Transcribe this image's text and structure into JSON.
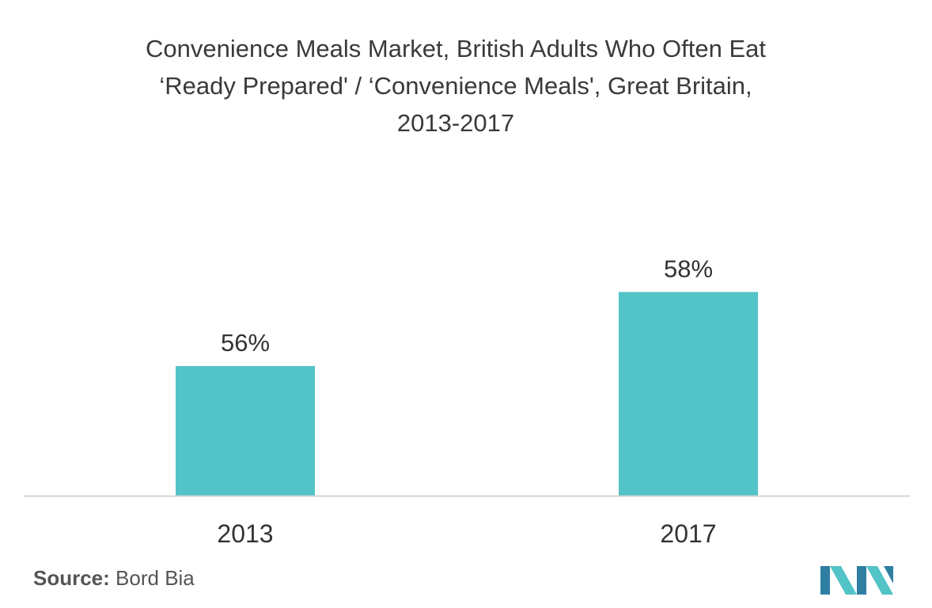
{
  "title_lines": [
    "Convenience Meals Market, British Adults Who Often Eat",
    "‘Ready Prepared' / ‘Convenience Meals', Great Britain,",
    "2013-2017"
  ],
  "source": {
    "label": "Source:",
    "text": "Bord Bia"
  },
  "colors": {
    "bar": "#52c3c6",
    "axis": "#d6d6d6",
    "text": "#333333",
    "logo_dark": "#2f7fa3",
    "logo_light": "#52c3c6"
  },
  "logo_icon": "mordor-intelligence-logo-icon",
  "chart_data": {
    "type": "bar",
    "title": "Convenience Meals Market, British Adults Who Often Eat ‘Ready Prepared' / ‘Convenience Meals', Great Britain, 2013-2017",
    "categories": [
      "2013",
      "2017"
    ],
    "values": [
      56,
      58
    ],
    "value_labels": [
      "56%",
      "58%"
    ],
    "unit": "%",
    "xlabel": "",
    "ylabel": "",
    "ylim": [
      52.5,
      59.5
    ],
    "grid": false,
    "legend": "none"
  }
}
